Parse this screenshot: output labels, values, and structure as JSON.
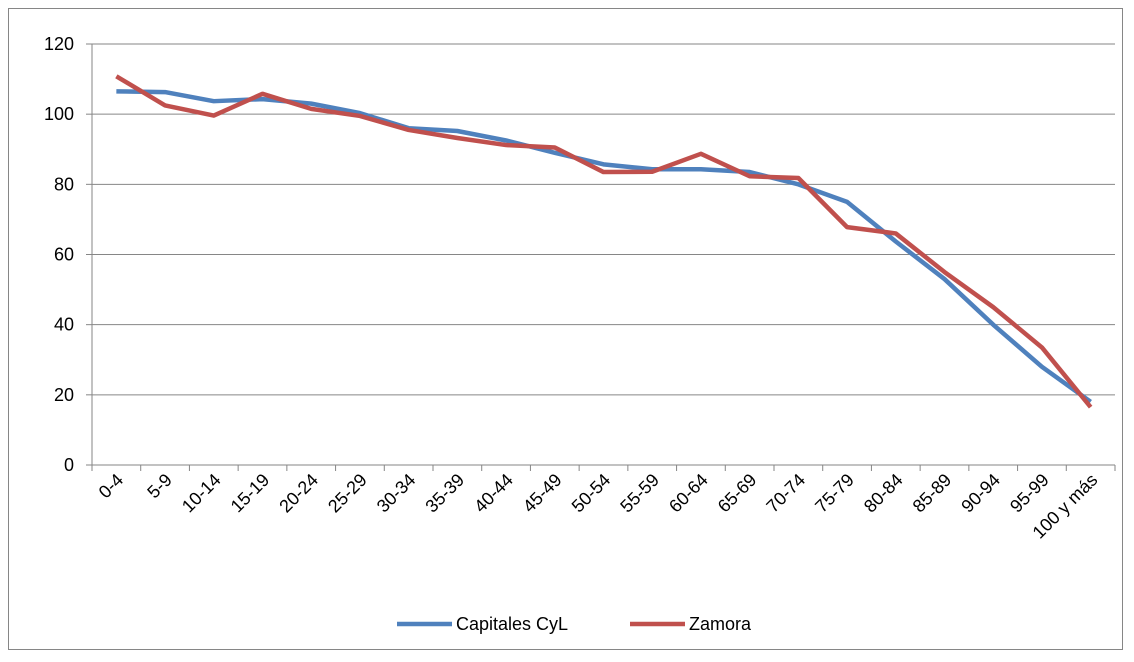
{
  "chart_data": {
    "type": "line",
    "categories": [
      "0-4",
      "5-9",
      "10-14",
      "15-19",
      "20-24",
      "25-29",
      "30-34",
      "35-39",
      "40-44",
      "45-49",
      "50-54",
      "55-59",
      "60-64",
      "65-69",
      "70-74",
      "75-79",
      "80-84",
      "85-89",
      "90-94",
      "95-99",
      "100 y más"
    ],
    "series": [
      {
        "name": "Capitales CyL",
        "color": "#4f81bd",
        "values": [
          106.5,
          106.3,
          103.7,
          104.3,
          103,
          100.3,
          96,
          95.2,
          92.5,
          89,
          85.7,
          84.3,
          84.3,
          83.5,
          80,
          75,
          63.7,
          53,
          40,
          28,
          18
        ]
      },
      {
        "name": "Zamora",
        "color": "#c0504d",
        "values": [
          110.8,
          102.5,
          99.6,
          105.8,
          101.5,
          99.5,
          95.5,
          93.2,
          91.2,
          90.5,
          83.5,
          83.6,
          88.7,
          82.3,
          81.8,
          67.8,
          66,
          55,
          45,
          33.5,
          16.5
        ]
      }
    ],
    "ylim": [
      0,
      120
    ],
    "yticks": [
      0,
      20,
      40,
      60,
      80,
      100,
      120
    ],
    "grid": true,
    "legend": "bottom"
  }
}
